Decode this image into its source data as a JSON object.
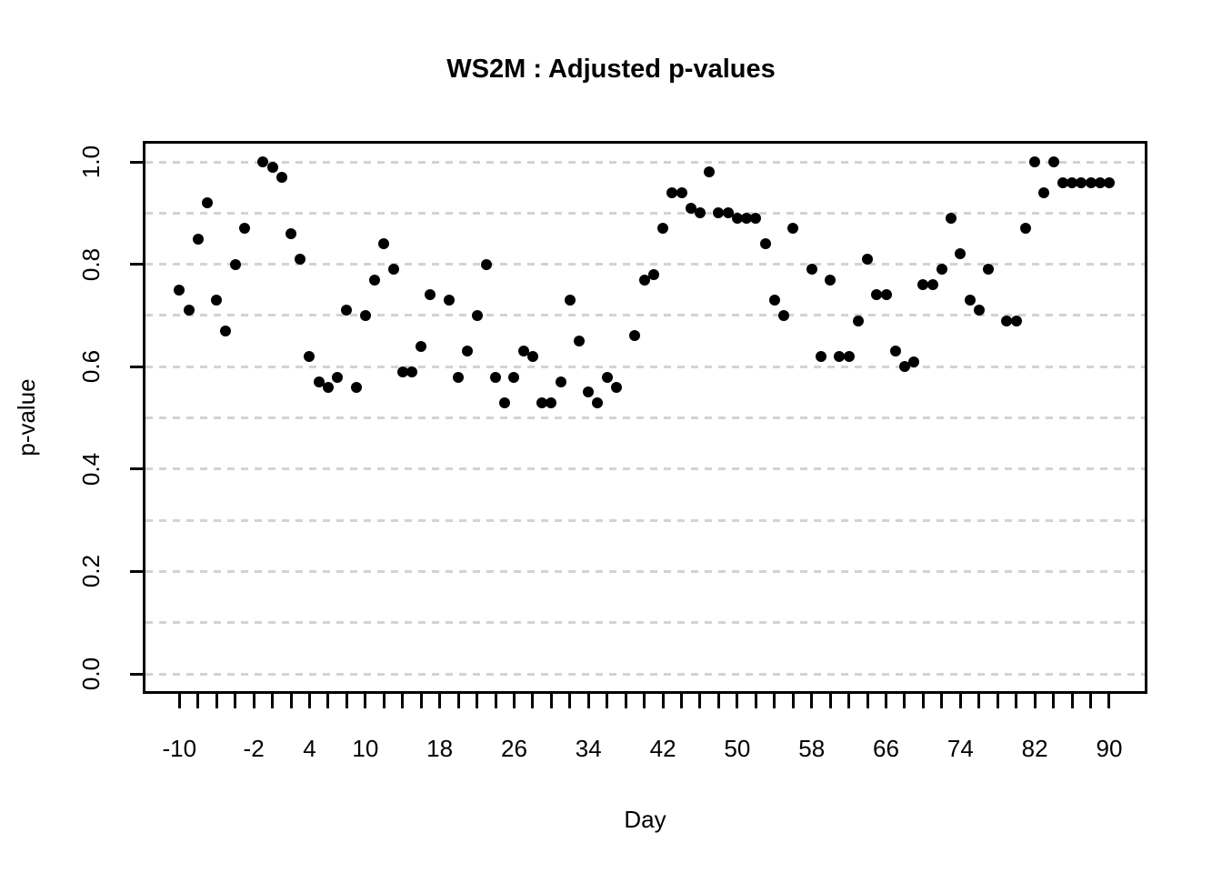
{
  "title": "WS2M : Adjusted p-values",
  "chart_data": {
    "type": "scatter",
    "title": "WS2M : Adjusted p-values",
    "xlabel": "Day",
    "ylabel": "p-value",
    "x_tick_labels": [
      -10,
      -2,
      4,
      10,
      18,
      26,
      34,
      42,
      50,
      58,
      66,
      74,
      82,
      90
    ],
    "x_minor_ticks": {
      "from": -10,
      "to": 90,
      "step": 2
    },
    "y_tick_labels": [
      "0.0",
      "0.2",
      "0.4",
      "0.6",
      "0.8",
      "1.0"
    ],
    "y_gridlines": [
      0,
      0.1,
      0.2,
      0.3,
      0.4,
      0.5,
      0.6,
      0.7,
      0.8,
      0.9,
      1.0
    ],
    "xlim": [
      -13.94,
      94.11
    ],
    "ylim": [
      -0.039,
      1.041
    ],
    "grid_style": "dashed-horizontal",
    "legend": "none",
    "point_color": "#000000",
    "grid_color": "#D3D3D3",
    "axis_color": "#000000",
    "background_color": "#FFFFFF",
    "points": [
      [
        -10,
        0.75
      ],
      [
        -9,
        0.71
      ],
      [
        -8,
        0.85
      ],
      [
        -7,
        0.92
      ],
      [
        -6,
        0.73
      ],
      [
        -5,
        0.67
      ],
      [
        -4,
        0.8
      ],
      [
        -3,
        0.87
      ],
      [
        -1,
        1.0
      ],
      [
        0,
        0.99
      ],
      [
        1,
        0.97
      ],
      [
        2,
        0.86
      ],
      [
        3,
        0.81
      ],
      [
        4,
        0.62
      ],
      [
        5,
        0.57
      ],
      [
        6,
        0.56
      ],
      [
        7,
        0.58
      ],
      [
        8,
        0.71
      ],
      [
        9,
        0.56
      ],
      [
        10,
        0.7
      ],
      [
        11,
        0.77
      ],
      [
        12,
        0.84
      ],
      [
        13,
        0.79
      ],
      [
        14,
        0.59
      ],
      [
        15,
        0.59
      ],
      [
        16,
        0.64
      ],
      [
        17,
        0.74
      ],
      [
        19,
        0.73
      ],
      [
        20,
        0.58
      ],
      [
        21,
        0.63
      ],
      [
        22,
        0.7
      ],
      [
        23,
        0.8
      ],
      [
        24,
        0.58
      ],
      [
        25,
        0.53
      ],
      [
        26,
        0.58
      ],
      [
        27,
        0.63
      ],
      [
        28,
        0.62
      ],
      [
        29,
        0.53
      ],
      [
        30,
        0.53
      ],
      [
        31,
        0.57
      ],
      [
        32,
        0.73
      ],
      [
        33,
        0.65
      ],
      [
        34,
        0.55
      ],
      [
        35,
        0.53
      ],
      [
        36,
        0.58
      ],
      [
        37,
        0.56
      ],
      [
        39,
        0.66
      ],
      [
        40,
        0.77
      ],
      [
        41,
        0.78
      ],
      [
        42,
        0.87
      ],
      [
        43,
        0.94
      ],
      [
        44,
        0.94
      ],
      [
        45,
        0.91
      ],
      [
        46,
        0.9
      ],
      [
        47,
        0.98
      ],
      [
        48,
        0.9
      ],
      [
        49,
        0.9
      ],
      [
        50,
        0.89
      ],
      [
        51,
        0.89
      ],
      [
        52,
        0.89
      ],
      [
        53,
        0.84
      ],
      [
        54,
        0.73
      ],
      [
        55,
        0.7
      ],
      [
        56,
        0.87
      ],
      [
        58,
        0.79
      ],
      [
        59,
        0.62
      ],
      [
        60,
        0.77
      ],
      [
        61,
        0.62
      ],
      [
        62,
        0.62
      ],
      [
        63,
        0.69
      ],
      [
        64,
        0.81
      ],
      [
        65,
        0.74
      ],
      [
        66,
        0.74
      ],
      [
        67,
        0.63
      ],
      [
        68,
        0.6
      ],
      [
        69,
        0.61
      ],
      [
        70,
        0.76
      ],
      [
        71,
        0.76
      ],
      [
        72,
        0.79
      ],
      [
        73,
        0.89
      ],
      [
        74,
        0.82
      ],
      [
        75,
        0.73
      ],
      [
        76,
        0.71
      ],
      [
        77,
        0.79
      ],
      [
        79,
        0.69
      ],
      [
        80,
        0.69
      ],
      [
        81,
        0.87
      ],
      [
        82,
        1.0
      ],
      [
        83,
        0.94
      ],
      [
        84,
        1.0
      ],
      [
        85,
        0.96
      ],
      [
        86,
        0.96
      ],
      [
        87,
        0.96
      ],
      [
        88,
        0.96
      ],
      [
        89,
        0.96
      ],
      [
        90,
        0.96
      ]
    ]
  }
}
